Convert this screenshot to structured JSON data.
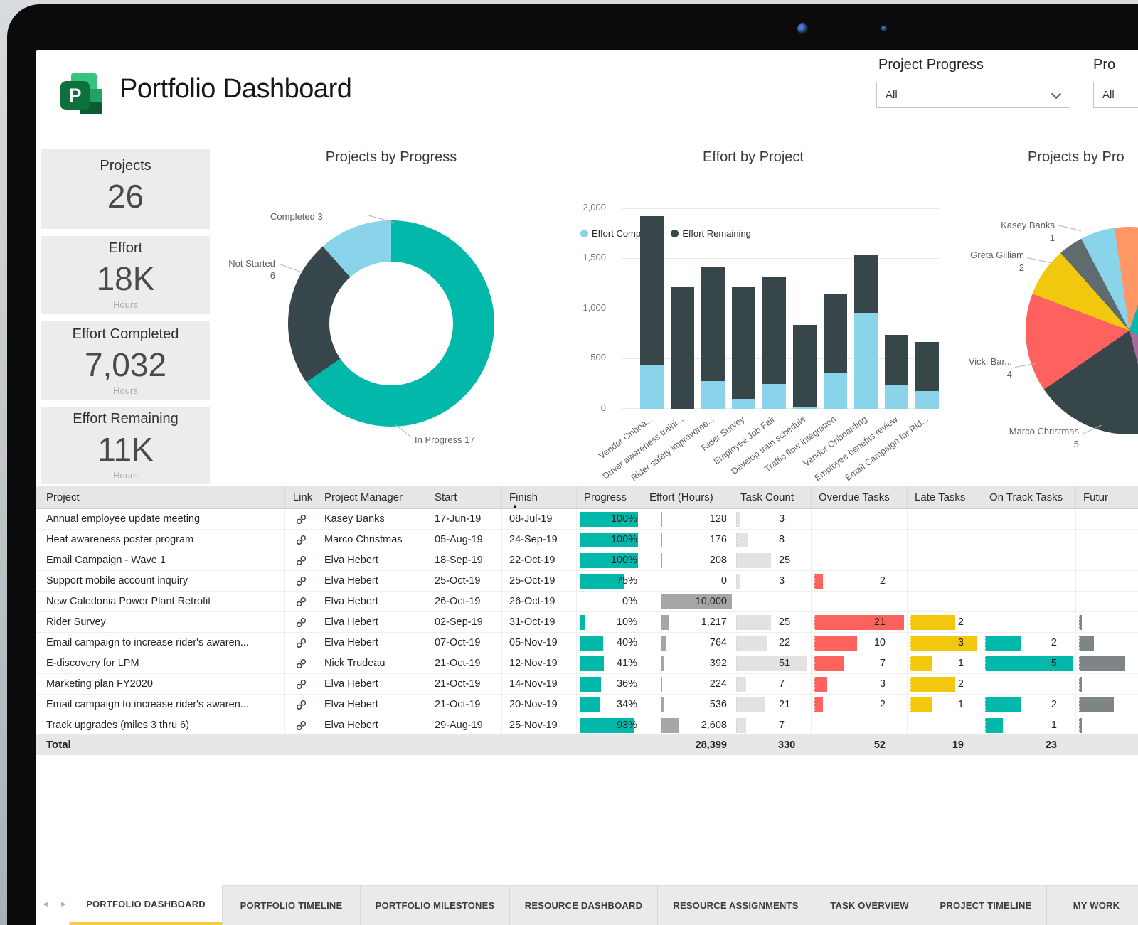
{
  "header": {
    "title": "Portfolio Dashboard",
    "filters": [
      {
        "label": "Project Progress",
        "value": "All"
      },
      {
        "label": "Pro",
        "value": "All"
      }
    ]
  },
  "kpis": [
    {
      "title": "Projects",
      "value": "26",
      "unit": ""
    },
    {
      "title": "Effort",
      "value": "18K",
      "unit": "Hours"
    },
    {
      "title": "Effort Completed",
      "value": "7,032",
      "unit": "Hours"
    },
    {
      "title": "Effort Remaining",
      "value": "11K",
      "unit": "Hours"
    }
  ],
  "palette": {
    "teal": "#01B8AA",
    "dark_slate": "#374649",
    "light_blue": "#8AD4EB",
    "red": "#FD625E",
    "yellow": "#F2C80F",
    "orange": "#FE9666",
    "gray": "#5F6B6D",
    "tab_accent": "#F6C844"
  },
  "chart_data": [
    {
      "type": "donut",
      "title": "Projects by Progress",
      "total": 26,
      "segments": [
        {
          "label": "In Progress",
          "value": 17,
          "color": "#01B8AA"
        },
        {
          "label": "Not Started",
          "value": 6,
          "color": "#37474C"
        },
        {
          "label": "Completed",
          "value": 3,
          "color": "#8AD4EB"
        }
      ]
    },
    {
      "type": "bar",
      "title": "Effort by Project",
      "legend": [
        "Effort Completed",
        "Effort Remaining"
      ],
      "colors": {
        "completed": "#8AD4EB",
        "remaining": "#374649"
      },
      "ylim": [
        0,
        2000
      ],
      "y_ticks": [
        "2,000",
        "1,500",
        "1,000",
        "500",
        "0"
      ],
      "categories": [
        "Vendor Onboa...",
        "Driver awareness traini...",
        "Rider safety improveme...",
        "Rider Survey",
        "Employee Job Fair",
        "Develop train schedule",
        "Traffic flow integration",
        "Vendor Onboarding",
        "Employee benefits review",
        "Email Campaign for Rid..."
      ],
      "series": [
        {
          "name": "Effort Completed",
          "values": [
            430,
            0,
            280,
            100,
            250,
            20,
            360,
            960,
            240,
            180
          ]
        },
        {
          "name": "Effort Remaining",
          "values": [
            1490,
            1210,
            1130,
            1110,
            1070,
            820,
            790,
            570,
            500,
            490
          ]
        }
      ]
    },
    {
      "type": "pie",
      "title": "Projects by Pro",
      "total": 26,
      "segments": [
        {
          "label": "",
          "value": 1.3,
          "color": "#FE9666"
        },
        {
          "label": "",
          "value": 7.4,
          "color": "#01B8AA"
        },
        {
          "label": "",
          "value": 3.3,
          "color": "#A66999"
        },
        {
          "label": "Marco Christmas",
          "value": 5,
          "color": "#374649"
        },
        {
          "label": "Vicki Bar...",
          "value": 4,
          "color": "#FD625E"
        },
        {
          "label": "Greta Gilliam",
          "value": 2,
          "color": "#F2C80F"
        },
        {
          "label": "Kasey Banks",
          "value": 1,
          "color": "#5F6B6D"
        },
        {
          "label": "",
          "value": 1.4,
          "color": "#8AD4EB"
        },
        {
          "label": "",
          "value": 0.6,
          "color": "#FE9666"
        }
      ]
    }
  ],
  "table": {
    "columns": [
      "Project",
      "Link",
      "Project Manager",
      "Start",
      "Finish",
      "Progress",
      "Effort (Hours)",
      "Task Count",
      "Overdue Tasks",
      "Late Tasks",
      "On Track Tasks",
      "Futur"
    ],
    "sort_column": "Finish",
    "sort_indicator": "▲",
    "rows": [
      {
        "project": "Annual employee update meeting",
        "manager": "Kasey Banks",
        "start": "17-Jun-19",
        "finish": "08-Jul-19",
        "progress_pct": 100,
        "effort_hours": "128",
        "task_count": 3,
        "overdue": null,
        "late": null,
        "on_track": null,
        "future_bar": 0
      },
      {
        "project": "Heat awareness poster program",
        "manager": "Marco Christmas",
        "start": "05-Aug-19",
        "finish": "24-Sep-19",
        "progress_pct": 100,
        "effort_hours": "176",
        "task_count": 8,
        "overdue": null,
        "late": null,
        "on_track": null,
        "future_bar": 0
      },
      {
        "project": "Email Campaign - Wave 1",
        "manager": "Elva Hebert",
        "start": "18-Sep-19",
        "finish": "22-Oct-19",
        "progress_pct": 100,
        "effort_hours": "208",
        "task_count": 25,
        "overdue": null,
        "late": null,
        "on_track": null,
        "future_bar": 0
      },
      {
        "project": "Support mobile account inquiry",
        "manager": "Elva Hebert",
        "start": "25-Oct-19",
        "finish": "25-Oct-19",
        "progress_pct": 75,
        "effort_hours": "0",
        "task_count": 3,
        "overdue": 2,
        "late": null,
        "on_track": null,
        "future_bar": 0
      },
      {
        "project": "New Caledonia Power Plant Retrofit",
        "manager": "Elva Hebert",
        "start": "26-Oct-19",
        "finish": "26-Oct-19",
        "progress_pct": 0,
        "effort_hours": "10,000",
        "task_count": null,
        "overdue": null,
        "late": null,
        "on_track": null,
        "future_bar": 0
      },
      {
        "project": "Rider Survey",
        "manager": "Elva Hebert",
        "start": "02-Sep-19",
        "finish": "31-Oct-19",
        "progress_pct": 10,
        "effort_hours": "1,217",
        "task_count": 25,
        "overdue": 21,
        "late": 2,
        "on_track": null,
        "future_bar": 0.03
      },
      {
        "project": "Email campaign to increase rider's awaren...",
        "manager": "Elva Hebert",
        "start": "07-Oct-19",
        "finish": "05-Nov-19",
        "progress_pct": 40,
        "effort_hours": "764",
        "task_count": 22,
        "overdue": 10,
        "late": 3,
        "on_track": 2,
        "future_bar": 0.16
      },
      {
        "project": "E-discovery for LPM",
        "manager": "Nick Trudeau",
        "start": "21-Oct-19",
        "finish": "12-Nov-19",
        "progress_pct": 41,
        "effort_hours": "392",
        "task_count": 51,
        "overdue": 7,
        "late": 1,
        "on_track": 5,
        "future_bar": 0.5
      },
      {
        "project": "Marketing plan FY2020",
        "manager": "Elva Hebert",
        "start": "21-Oct-19",
        "finish": "14-Nov-19",
        "progress_pct": 36,
        "effort_hours": "224",
        "task_count": 7,
        "overdue": 3,
        "late": 2,
        "on_track": null,
        "future_bar": 0.03
      },
      {
        "project": "Email campaign to increase rider's awaren...",
        "manager": "Elva Hebert",
        "start": "21-Oct-19",
        "finish": "20-Nov-19",
        "progress_pct": 34,
        "effort_hours": "536",
        "task_count": 21,
        "overdue": 2,
        "late": 1,
        "on_track": 2,
        "future_bar": 0.38
      },
      {
        "project": "Track upgrades (miles 3 thru 6)",
        "manager": "Elva Hebert",
        "start": "29-Aug-19",
        "finish": "25-Nov-19",
        "progress_pct": 93,
        "effort_hours": "2,608",
        "task_count": 7,
        "overdue": null,
        "late": null,
        "on_track": 1,
        "future_bar": 0.03
      }
    ],
    "total": {
      "label": "Total",
      "effort_hours": "28,399",
      "task_count": "330",
      "overdue": "52",
      "late": "19",
      "on_track": "23"
    }
  },
  "tabs": {
    "nav_prev": "◄",
    "nav_next": "►",
    "active_index": 0,
    "items": [
      "PORTFOLIO DASHBOARD",
      "PORTFOLIO TIMELINE",
      "PORTFOLIO MILESTONES",
      "RESOURCE DASHBOARD",
      "RESOURCE ASSIGNMENTS",
      "TASK OVERVIEW",
      "PROJECT TIMELINE",
      "MY WORK"
    ]
  }
}
